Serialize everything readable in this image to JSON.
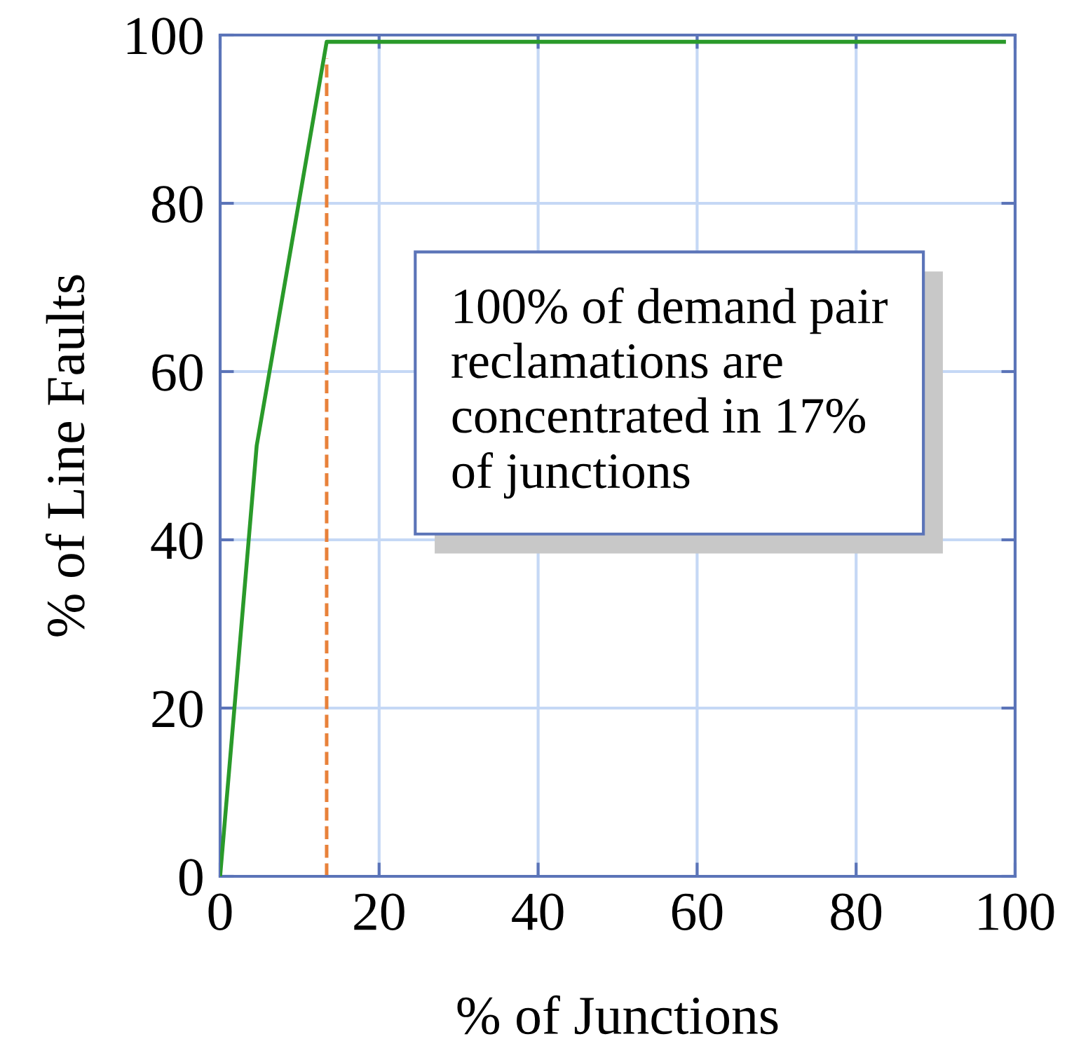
{
  "chart_data": {
    "type": "line",
    "xlabel": "% of Junctions",
    "ylabel": "% of Line Faults",
    "x": [
      0,
      4.6,
      13.4,
      98.6
    ],
    "series": [
      {
        "color": "#2a9a2a",
        "values": [
          0,
          51.2,
          99.2,
          99.2
        ]
      }
    ],
    "ref_lines": [
      {
        "axis": "x",
        "value": 13.4,
        "color": "#e8813a",
        "line_style": "dashed"
      }
    ],
    "annotations": [
      "100% of demand pair\nreclamations are\nconcentrated in 17%\nof junctions"
    ],
    "xlim": [
      0,
      100
    ],
    "ylim": [
      0,
      100
    ],
    "xticks": [
      0,
      20,
      40,
      60,
      80,
      100
    ],
    "yticks": [
      0,
      20,
      40,
      60,
      80,
      100
    ],
    "grid": true,
    "marker": "none",
    "line_style": "solid"
  }
}
